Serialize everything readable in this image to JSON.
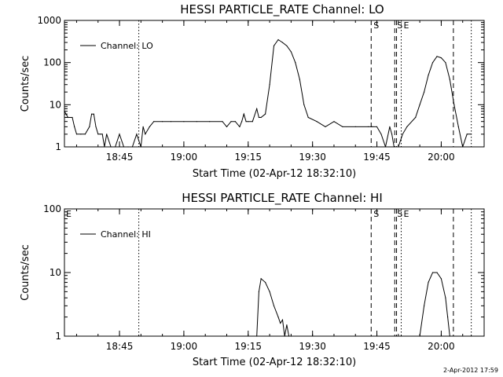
{
  "stamp": "2-Apr-2012 17:59",
  "chart_data": [
    {
      "type": "line",
      "title": "HESSI PARTICLE_RATE Channel: LO",
      "xlabel": "Start Time (02-Apr-12 18:32:10)",
      "ylabel": "Counts/sec",
      "yscale": "log",
      "ylim": [
        1,
        1000
      ],
      "yticks": [
        1,
        10,
        100,
        1000
      ],
      "ytick_labels": [
        "1",
        "10",
        "100",
        "1000"
      ],
      "xlim": [
        "18:32:10",
        "20:10:00"
      ],
      "xticks": [
        "18:45",
        "19:00",
        "19:15",
        "19:30",
        "19:45",
        "20:00"
      ],
      "legend": "top-left",
      "series": [
        {
          "name": "Channel: LO",
          "x": [
            "18:32:10",
            "18:33:00",
            "18:34:00",
            "18:34:30",
            "18:35:00",
            "18:36:00",
            "18:37:00",
            "18:38:00",
            "18:38:30",
            "18:39:00",
            "18:39:30",
            "18:40:00",
            "18:40:30",
            "18:41:00",
            "18:41:30",
            "18:42:00",
            "18:43:00",
            "18:44:00",
            "18:45:00",
            "18:46:00",
            "18:47:00",
            "18:48:00",
            "18:49:00",
            "18:50:00",
            "18:50:30",
            "18:51:00",
            "18:52:00",
            "18:53:00",
            "18:55:00",
            "18:57:00",
            "19:00:00",
            "19:03:00",
            "19:06:00",
            "19:09:00",
            "19:10:00",
            "19:11:00",
            "19:12:00",
            "19:13:00",
            "19:13:30",
            "19:14:00",
            "19:14:30",
            "19:15:00",
            "19:16:00",
            "19:17:00",
            "19:17:30",
            "19:18:00",
            "19:19:00",
            "19:20:00",
            "19:21:00",
            "19:22:00",
            "19:23:00",
            "19:24:00",
            "19:25:00",
            "19:26:00",
            "19:27:00",
            "19:28:00",
            "19:29:00",
            "19:31:00",
            "19:33:00",
            "19:35:00",
            "19:37:00",
            "19:40:00",
            "19:43:00",
            "19:44:00",
            "19:45:00",
            "19:46:00",
            "19:47:00",
            "19:48:00",
            "19:48:30",
            "19:49:00",
            "19:50:00",
            "19:51:00",
            "19:52:00",
            "19:54:00",
            "19:55:00",
            "19:56:00",
            "19:57:00",
            "19:58:00",
            "19:59:00",
            "20:00:00",
            "20:01:00",
            "20:02:00",
            "20:03:00",
            "20:04:00",
            "20:05:00",
            "20:06:00",
            "20:07:00"
          ],
          "values": [
            7,
            5,
            5,
            3,
            2,
            2,
            2,
            3,
            6,
            6,
            3,
            2,
            2,
            2,
            1,
            2,
            1,
            1,
            2,
            1,
            1,
            1,
            2,
            1,
            3,
            2,
            3,
            4,
            4,
            4,
            4,
            4,
            4,
            4,
            3,
            4,
            4,
            3,
            4,
            6,
            4,
            4,
            4,
            8,
            5,
            5,
            6,
            30,
            250,
            350,
            300,
            250,
            180,
            100,
            40,
            10,
            5,
            4,
            3,
            4,
            3,
            3,
            3,
            3,
            3,
            2,
            1,
            3,
            2,
            1,
            1,
            2,
            3,
            5,
            10,
            20,
            50,
            100,
            140,
            130,
            100,
            40,
            10,
            3,
            1,
            2,
            2
          ]
        }
      ],
      "event_lines": [
        {
          "time": "18:49:30",
          "style": "dotted",
          "label": ""
        },
        {
          "time": "19:43:40",
          "style": "dashed",
          "label": "S"
        },
        {
          "time": "19:49:10",
          "style": "dashed",
          "label": "S"
        },
        {
          "time": "19:49:35",
          "style": "dashed",
          "label": ""
        },
        {
          "time": "19:50:40",
          "style": "dotted",
          "label": "E"
        },
        {
          "time": "20:02:50",
          "style": "dashed",
          "label": ""
        },
        {
          "time": "20:07:00",
          "style": "dotted",
          "label": ""
        }
      ]
    },
    {
      "type": "line",
      "title": "HESSI PARTICLE_RATE Channel: HI",
      "xlabel": "Start Time (02-Apr-12 18:32:10)",
      "ylabel": "Counts/sec",
      "yscale": "log",
      "ylim": [
        1,
        100
      ],
      "yticks": [
        1,
        10,
        100
      ],
      "ytick_labels": [
        "1",
        "10",
        "100"
      ],
      "xlim": [
        "18:32:10",
        "20:10:00"
      ],
      "xticks": [
        "18:45",
        "19:00",
        "19:15",
        "19:30",
        "19:45",
        "20:00"
      ],
      "legend": "top-left",
      "corner_label": "E",
      "series": [
        {
          "name": "Channel: HI",
          "segments": [
            {
              "x": [
                "19:17:00",
                "19:17:30",
                "19:18:00",
                "19:19:00",
                "19:20:00",
                "19:21:00",
                "19:22:00",
                "19:22:30",
                "19:23:00",
                "19:23:30",
                "19:24:00",
                "19:24:30",
                "19:25:00"
              ],
              "values": [
                1,
                5,
                8,
                7,
                5,
                3,
                2,
                1.6,
                1.8,
                1,
                1.5,
                1,
                1
              ]
            },
            {
              "x": [
                "19:55:00",
                "19:56:00",
                "19:57:00",
                "19:58:00",
                "19:59:00",
                "20:00:00",
                "20:01:00",
                "20:01:30",
                "20:02:00"
              ],
              "values": [
                1,
                3,
                7,
                10,
                10,
                8,
                4,
                2,
                1
              ]
            }
          ]
        }
      ],
      "event_lines": [
        {
          "time": "18:49:30",
          "style": "dotted",
          "label": ""
        },
        {
          "time": "19:43:40",
          "style": "dashed",
          "label": "S"
        },
        {
          "time": "19:49:10",
          "style": "dashed",
          "label": "S"
        },
        {
          "time": "19:49:35",
          "style": "dashed",
          "label": ""
        },
        {
          "time": "19:50:40",
          "style": "dotted",
          "label": "E"
        },
        {
          "time": "20:02:50",
          "style": "dashed",
          "label": ""
        },
        {
          "time": "20:07:00",
          "style": "dotted",
          "label": ""
        }
      ]
    }
  ]
}
